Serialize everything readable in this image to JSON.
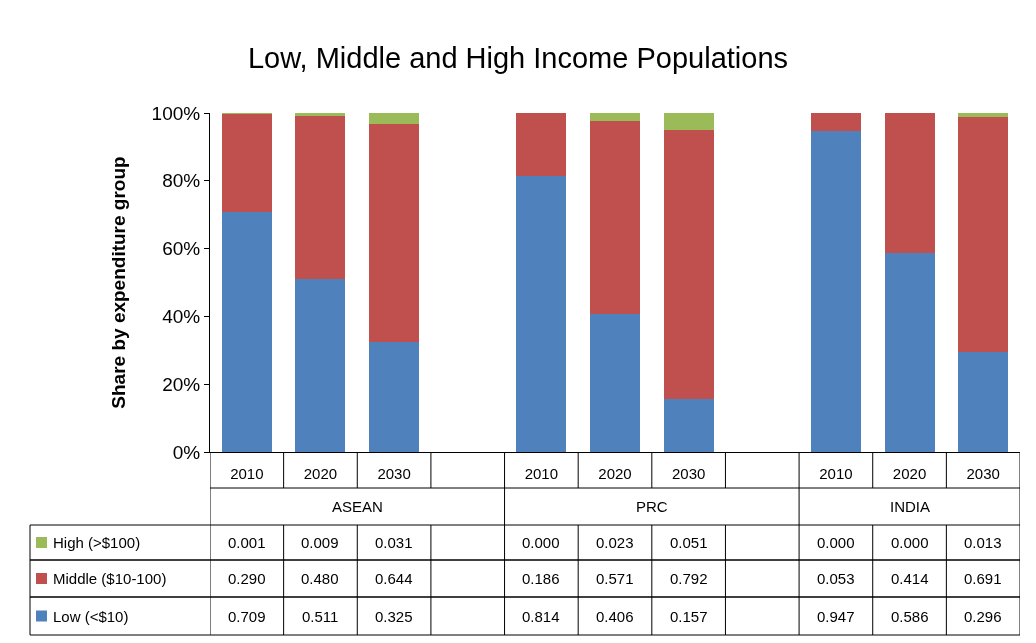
{
  "chart_data": {
    "type": "bar",
    "title": "Low, Middle and High Income Populations",
    "ylabel": "Share by expenditure group",
    "categories": [
      "2010",
      "2020",
      "2030",
      null,
      "2010",
      "2020",
      "2030",
      null,
      "2010",
      "2020",
      "2030"
    ],
    "annotations": [
      "ASEAN",
      "PRC",
      "INDIA"
    ],
    "stacked": true,
    "legend": "bottom left",
    "ylim": [
      0,
      1
    ],
    "yticks": [
      {
        "value": 0,
        "label": "0%"
      },
      {
        "value": 0.2,
        "label": "20%"
      },
      {
        "value": 0.4,
        "label": "40%"
      },
      {
        "value": 0.6,
        "label": "60%"
      },
      {
        "value": 0.8,
        "label": "80%"
      },
      {
        "value": 1,
        "label": "100%"
      }
    ],
    "series": [
      {
        "name": "Low (<$10)",
        "color": "#4f81bd",
        "values": [
          0.709,
          0.511,
          0.325,
          null,
          0.814,
          0.406,
          0.157,
          null,
          0.947,
          0.586,
          0.296
        ],
        "value_labels": [
          "0.709",
          "0.511",
          "0.325",
          null,
          "0.814",
          "0.406",
          "0.157",
          null,
          "0.947",
          "0.586",
          "0.296"
        ]
      },
      {
        "name": "Middle ($10-100)",
        "color": "#c0504d",
        "values": [
          0.29,
          0.48,
          0.644,
          null,
          0.186,
          0.571,
          0.792,
          null,
          0.053,
          0.414,
          0.691
        ],
        "value_labels": [
          "0.290",
          "0.480",
          "0.644",
          null,
          "0.186",
          "0.571",
          "0.792",
          null,
          "0.053",
          "0.414",
          "0.691"
        ]
      },
      {
        "name": "High (>$100)",
        "color": "#9bbb59",
        "values": [
          0.001,
          0.009,
          0.031,
          null,
          0.0,
          0.023,
          0.051,
          null,
          0.0,
          0.0,
          0.013
        ],
        "value_labels": [
          "0.001",
          "0.009",
          "0.031",
          null,
          "0.000",
          "0.023",
          "0.051",
          null,
          "0.000",
          "0.000",
          "0.013"
        ]
      }
    ]
  }
}
